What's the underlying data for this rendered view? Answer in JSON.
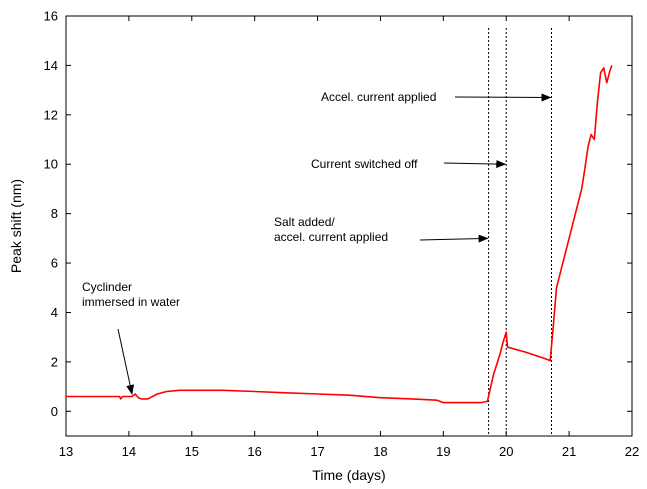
{
  "chart_data": {
    "type": "line",
    "title": "",
    "xlabel": "Time (days)",
    "ylabel": "Peak shift (nm)",
    "xlim": [
      13,
      22
    ],
    "ylim": [
      -1,
      16
    ],
    "xticks": [
      13,
      14,
      15,
      16,
      17,
      18,
      19,
      20,
      21,
      22
    ],
    "yticks": [
      0,
      2,
      4,
      6,
      8,
      10,
      12,
      14,
      16
    ],
    "grid": false,
    "legend": "none",
    "series": [
      {
        "color": "#ff0000",
        "x": [
          13.0,
          13.5,
          13.85,
          13.87,
          13.9,
          14.0,
          14.05,
          14.1,
          14.15,
          14.2,
          14.3,
          14.45,
          14.6,
          14.8,
          15.0,
          15.3,
          15.5,
          16.0,
          16.5,
          17.0,
          17.5,
          18.0,
          18.5,
          18.9,
          19.0,
          19.3,
          19.6,
          19.7,
          19.8,
          19.9,
          19.95,
          20.0,
          20.02,
          20.3,
          20.6,
          20.7,
          20.75,
          20.8,
          20.9,
          21.0,
          21.1,
          21.2,
          21.25,
          21.3,
          21.35,
          21.4,
          21.45,
          21.5,
          21.55,
          21.6,
          21.65,
          21.68
        ],
        "y": [
          0.6,
          0.6,
          0.6,
          0.5,
          0.6,
          0.6,
          0.6,
          0.7,
          0.55,
          0.5,
          0.5,
          0.7,
          0.8,
          0.85,
          0.85,
          0.85,
          0.85,
          0.8,
          0.75,
          0.7,
          0.65,
          0.55,
          0.5,
          0.45,
          0.35,
          0.35,
          0.35,
          0.4,
          1.5,
          2.3,
          2.8,
          3.2,
          2.6,
          2.4,
          2.15,
          2.05,
          3.5,
          5.0,
          6.0,
          7.0,
          8.0,
          9.0,
          9.8,
          10.7,
          11.2,
          11.0,
          12.5,
          13.7,
          13.9,
          13.3,
          13.8,
          14.0
        ]
      }
    ],
    "vlines": [
      19.72,
      20.0,
      20.72
    ],
    "annotations": [
      {
        "lines": [
          "Cyclinder",
          "immersed in water"
        ],
        "arrow_to": [
          14.05,
          0.7
        ]
      },
      {
        "lines": [
          "Salt added/",
          "accel. current applied"
        ],
        "arrow_to": [
          19.72,
          7.0
        ]
      },
      {
        "lines": [
          "Current switched off"
        ],
        "arrow_to": [
          20.0,
          10.0
        ]
      },
      {
        "lines": [
          "Accel. current applied"
        ],
        "arrow_to": [
          20.72,
          12.7
        ]
      }
    ]
  }
}
